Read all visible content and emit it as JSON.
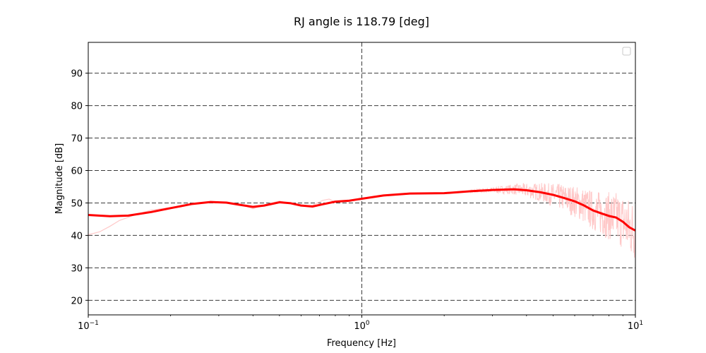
{
  "chart_data": {
    "type": "line",
    "title": "RJ angle is 118.79 [deg]",
    "xlabel": "Frequency [Hz]",
    "ylabel": "Magnitude [dB]",
    "x_scale": "log",
    "xlim": [
      0.1,
      10
    ],
    "ylim": [
      15.5,
      99.5
    ],
    "x_ticks": [
      {
        "value": 0.1,
        "base": "10",
        "exp": "−1"
      },
      {
        "value": 1,
        "base": "10",
        "exp": "0"
      },
      {
        "value": 10,
        "base": "10",
        "exp": "1"
      }
    ],
    "y_ticks": [
      20,
      30,
      40,
      50,
      60,
      70,
      80,
      90
    ],
    "grid": "dashed",
    "legend": "top-right, empty",
    "series": [
      {
        "color": "#ff0000",
        "style": "thick",
        "points": [
          [
            0.1,
            46.3
          ],
          [
            0.12,
            45.9
          ],
          [
            0.14,
            46.1
          ],
          [
            0.17,
            47.2
          ],
          [
            0.2,
            48.4
          ],
          [
            0.24,
            49.7
          ],
          [
            0.28,
            50.3
          ],
          [
            0.32,
            50.1
          ],
          [
            0.36,
            49.4
          ],
          [
            0.4,
            48.8
          ],
          [
            0.44,
            49.2
          ],
          [
            0.5,
            50.2
          ],
          [
            0.55,
            49.9
          ],
          [
            0.6,
            49.2
          ],
          [
            0.66,
            48.9
          ],
          [
            0.72,
            49.6
          ],
          [
            0.8,
            50.4
          ],
          [
            0.9,
            50.7
          ],
          [
            1.0,
            51.3
          ],
          [
            1.2,
            52.3
          ],
          [
            1.5,
            52.9
          ],
          [
            2.0,
            53.0
          ],
          [
            2.5,
            53.6
          ],
          [
            3.0,
            54.0
          ],
          [
            3.6,
            54.2
          ],
          [
            4.0,
            53.9
          ],
          [
            4.5,
            53.3
          ],
          [
            5.0,
            52.5
          ],
          [
            5.5,
            51.5
          ],
          [
            6.0,
            50.5
          ],
          [
            6.5,
            49.2
          ],
          [
            7.0,
            47.7
          ],
          [
            7.5,
            46.8
          ],
          [
            8.0,
            46.0
          ],
          [
            8.5,
            45.5
          ],
          [
            9.0,
            44.2
          ],
          [
            9.5,
            42.5
          ],
          [
            10.0,
            41.5
          ]
        ]
      },
      {
        "color": "#ffc8c8",
        "style": "thin-raw",
        "points": [
          [
            0.1,
            40.2
          ],
          [
            0.11,
            41.1
          ],
          [
            0.12,
            42.8
          ],
          [
            0.13,
            44.6
          ],
          [
            0.15,
            46.5
          ],
          [
            0.17,
            47.8
          ],
          [
            0.2,
            48.6
          ],
          [
            0.24,
            49.6
          ],
          [
            0.28,
            50.5
          ],
          [
            0.32,
            50.2
          ],
          [
            0.36,
            49.6
          ],
          [
            0.4,
            48.2
          ],
          [
            0.44,
            49.4
          ],
          [
            0.5,
            50.6
          ],
          [
            0.55,
            49.8
          ],
          [
            0.6,
            49.0
          ],
          [
            0.66,
            49.3
          ],
          [
            0.72,
            50.8
          ],
          [
            0.76,
            51.2
          ],
          [
            0.8,
            50.2
          ],
          [
            0.9,
            50.4
          ],
          [
            1.0,
            51.4
          ],
          [
            1.2,
            52.3
          ],
          [
            1.5,
            52.8
          ],
          [
            2.0,
            53.1
          ],
          [
            2.5,
            53.7
          ],
          [
            3.0,
            54.1
          ],
          [
            3.6,
            54.3
          ],
          [
            4.0,
            54.2
          ]
        ]
      }
    ],
    "noise_band": {
      "color": "#ffc8c8",
      "x_start": 2.5,
      "x_end": 10.0,
      "max_peak": 63.8,
      "min_trough": 32.5
    }
  }
}
